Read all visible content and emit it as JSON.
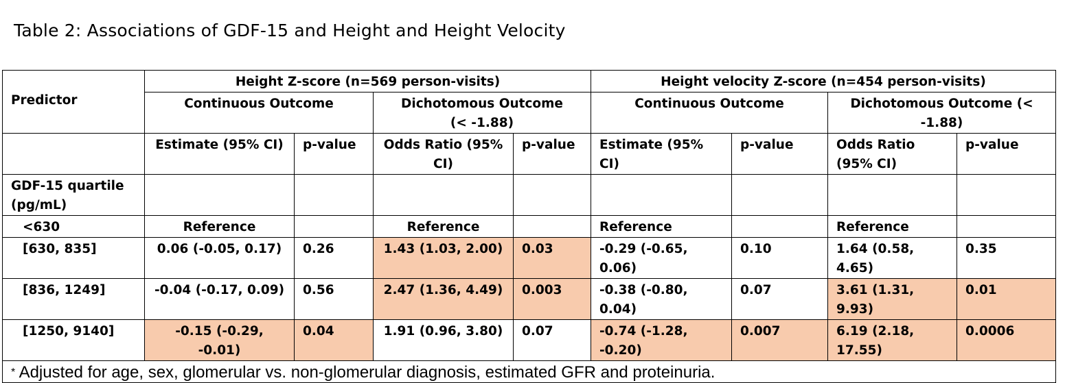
{
  "title": "Table 2: Associations of GDF-15 and Height and Height Velocity",
  "header": {
    "predictor": "Predictor",
    "group1": "Height Z-score (n=569 person-visits)",
    "group2": "Height velocity Z-score (n=454 person-visits)",
    "cont_outcome": "Continuous Outcome",
    "dich_outcome_1": "Dichotomous Outcome (< -1.88)",
    "dich_outcome_2": "Dichotomous Outcome (< -1.88)",
    "estimate": "Estimate (95% CI)",
    "pvalue": "p-value",
    "odds": "Odds Ratio (95% CI)"
  },
  "quartile_label": "GDF-15 quartile (pg/mL)",
  "rows": [
    {
      "label": "<630",
      "h_est": "Reference",
      "h_p": "",
      "h_or": "Reference",
      "h_orp": "",
      "v_est": "Reference",
      "v_p": "",
      "v_or": "Reference",
      "v_orp": ""
    },
    {
      "label": "[630, 835]",
      "h_est": "0.06 (-0.05, 0.17)",
      "h_p": "0.26",
      "h_or": "1.43 (1.03, 2.00)",
      "h_orp": "0.03",
      "v_est": "-0.29 (-0.65, 0.06)",
      "v_p": "0.10",
      "v_or": "1.64 (0.58, 4.65)",
      "v_orp": "0.35"
    },
    {
      "label": "[836, 1249]",
      "h_est": "-0.04 (-0.17, 0.09)",
      "h_p": "0.56",
      "h_or": "2.47 (1.36, 4.49)",
      "h_orp": "0.003",
      "v_est": "-0.38 (-0.80, 0.04)",
      "v_p": "0.07",
      "v_or": "3.61 (1.31, 9.93)",
      "v_orp": "0.01"
    },
    {
      "label": "[1250, 9140]",
      "h_est": "-0.15 (-0.29, -0.01)",
      "h_p": "0.04",
      "h_or": "1.91 (0.96, 3.80)",
      "h_orp": "0.07",
      "v_est": "-0.74 (-1.28, -0.20)",
      "v_p": "0.007",
      "v_or": "6.19 (2.18, 17.55)",
      "v_orp": "0.0006"
    }
  ],
  "footnote_star": "*",
  "footnote": "Adjusted for age, sex, glomerular vs. non-glomerular diagnosis, estimated GFR and proteinuria.",
  "highlight_color": "#f8cbad"
}
